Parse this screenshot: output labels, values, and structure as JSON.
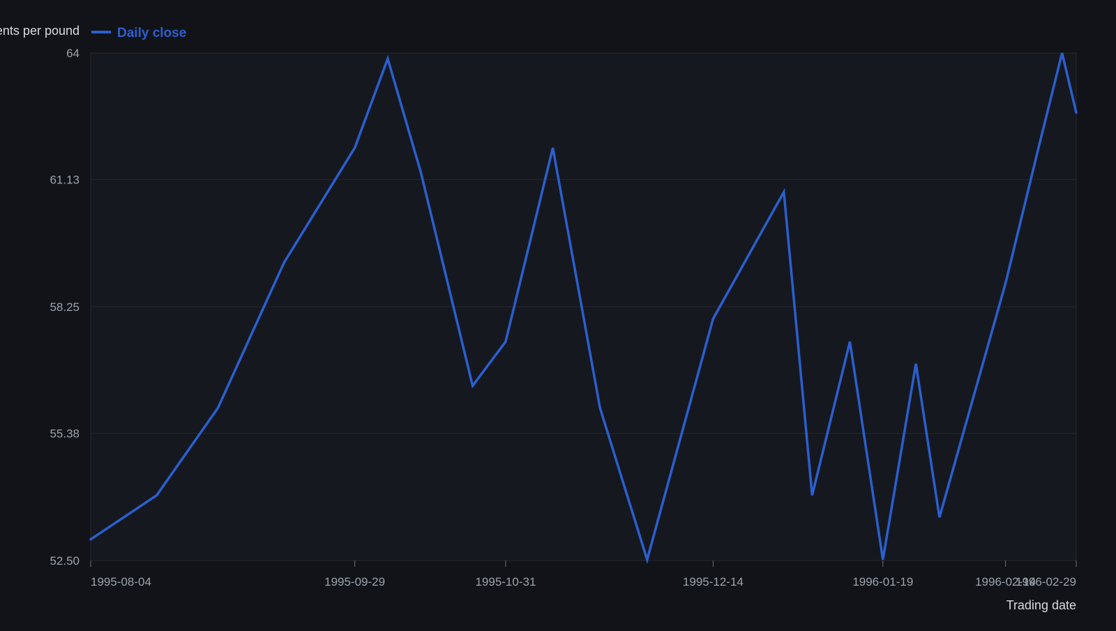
{
  "chart_data": {
    "type": "line",
    "title": "",
    "ylabel": "Cents per pound",
    "xlabel": "Trading date",
    "legend": {
      "position": "top-left",
      "entries": [
        "Daily close"
      ]
    },
    "grid": true,
    "ylim": [
      52.5,
      64
    ],
    "yticks": [
      "52.50",
      "55.38",
      "58.25",
      "61.13",
      "64"
    ],
    "xlim": [
      "1995-08-04",
      "1996-02-29"
    ],
    "xticks": [
      "1995-08-04",
      "1995-09-29",
      "1995-10-31",
      "1995-12-14",
      "1996-01-19",
      "1996-02-14",
      "1996-02-29"
    ],
    "series": [
      {
        "name": "Daily close",
        "color": "#2b5fd0",
        "points": [
          {
            "x": "1995-08-04",
            "y": 52.98
          },
          {
            "x": "1995-08-18",
            "y": 53.98
          },
          {
            "x": "1995-08-31",
            "y": 55.96
          },
          {
            "x": "1995-09-14",
            "y": 59.25
          },
          {
            "x": "1995-09-29",
            "y": 61.85
          },
          {
            "x": "1995-10-06",
            "y": 63.87
          },
          {
            "x": "1995-10-13",
            "y": 61.3
          },
          {
            "x": "1995-10-24",
            "y": 56.46
          },
          {
            "x": "1995-10-31",
            "y": 57.46
          },
          {
            "x": "1995-11-10",
            "y": 61.85
          },
          {
            "x": "1995-11-20",
            "y": 55.96
          },
          {
            "x": "1995-11-30",
            "y": 52.52
          },
          {
            "x": "1995-12-14",
            "y": 57.98
          },
          {
            "x": "1995-12-29",
            "y": 60.85
          },
          {
            "x": "1996-01-04",
            "y": 53.98
          },
          {
            "x": "1996-01-12",
            "y": 57.46
          },
          {
            "x": "1996-01-19",
            "y": 52.52
          },
          {
            "x": "1996-01-26",
            "y": 56.96
          },
          {
            "x": "1996-01-31",
            "y": 53.48
          },
          {
            "x": "1996-02-14",
            "y": 58.78
          },
          {
            "x": "1996-02-21",
            "y": 61.85
          },
          {
            "x": "1996-02-26",
            "y": 64.0
          },
          {
            "x": "1996-02-29",
            "y": 62.65
          }
        ]
      }
    ]
  }
}
